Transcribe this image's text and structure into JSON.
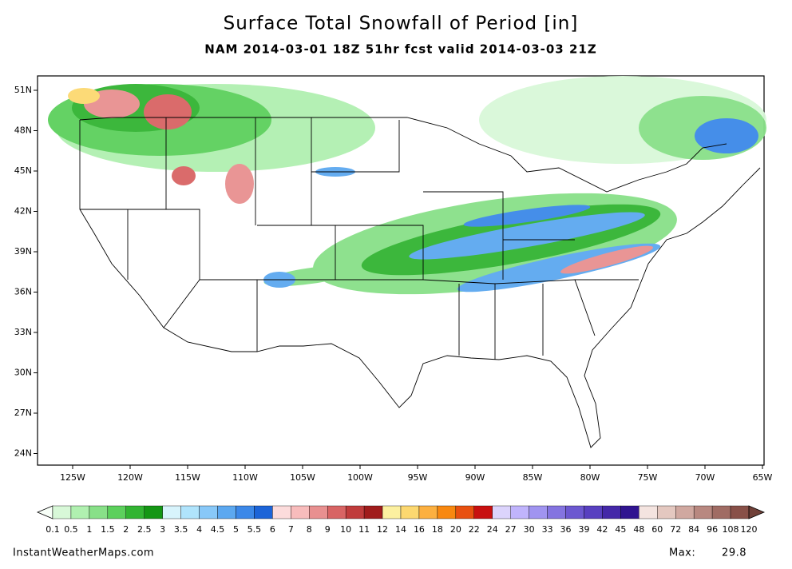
{
  "title": "Surface Total Snowfall of Period [in]",
  "subtitle": "NAM 2014-03-01 18Z 51hr fcst valid 2014-03-03 21Z",
  "map": {
    "lat_labels": [
      "51N",
      "48N",
      "45N",
      "42N",
      "39N",
      "36N",
      "33N",
      "30N",
      "27N",
      "24N"
    ],
    "lon_labels": [
      "125W",
      "120W",
      "115W",
      "110W",
      "105W",
      "100W",
      "95W",
      "90W",
      "85W",
      "80W",
      "75W",
      "70W",
      "65W"
    ]
  },
  "colorbar": {
    "labels": [
      0.1,
      0.5,
      1,
      1.5,
      2,
      2.5,
      3,
      3.5,
      4,
      4.5,
      5,
      5.5,
      6,
      7,
      8,
      9,
      10,
      11,
      12,
      14,
      16,
      18,
      20,
      22,
      24,
      27,
      30,
      33,
      36,
      39,
      42,
      45,
      48,
      60,
      72,
      84,
      96,
      108,
      120
    ],
    "colors": [
      "#d8f8d8",
      "#b0f0b0",
      "#88e088",
      "#5cd05c",
      "#32b432",
      "#149614",
      "#d8f4fc",
      "#b0e4fc",
      "#88c8f8",
      "#5ca8f0",
      "#3c88e8",
      "#1c64d8",
      "#fcdcdc",
      "#f8bcbc",
      "#e89090",
      "#d86464",
      "#c03c3c",
      "#a01c1c",
      "#fcf0a0",
      "#fcd870",
      "#fcb040",
      "#f88810",
      "#e85010",
      "#c81010",
      "#dcd4fc",
      "#c0b4fc",
      "#a094f0",
      "#8474e0",
      "#6c58d0",
      "#5840c0",
      "#4428a8",
      "#301490",
      "#f4e4e0",
      "#e4c8c0",
      "#d0a8a0",
      "#b88880",
      "#a06c64",
      "#885048"
    ]
  },
  "footer": {
    "source": "InstantWeatherMaps.com",
    "max_label": "Max:",
    "max_value": 29.8
  }
}
